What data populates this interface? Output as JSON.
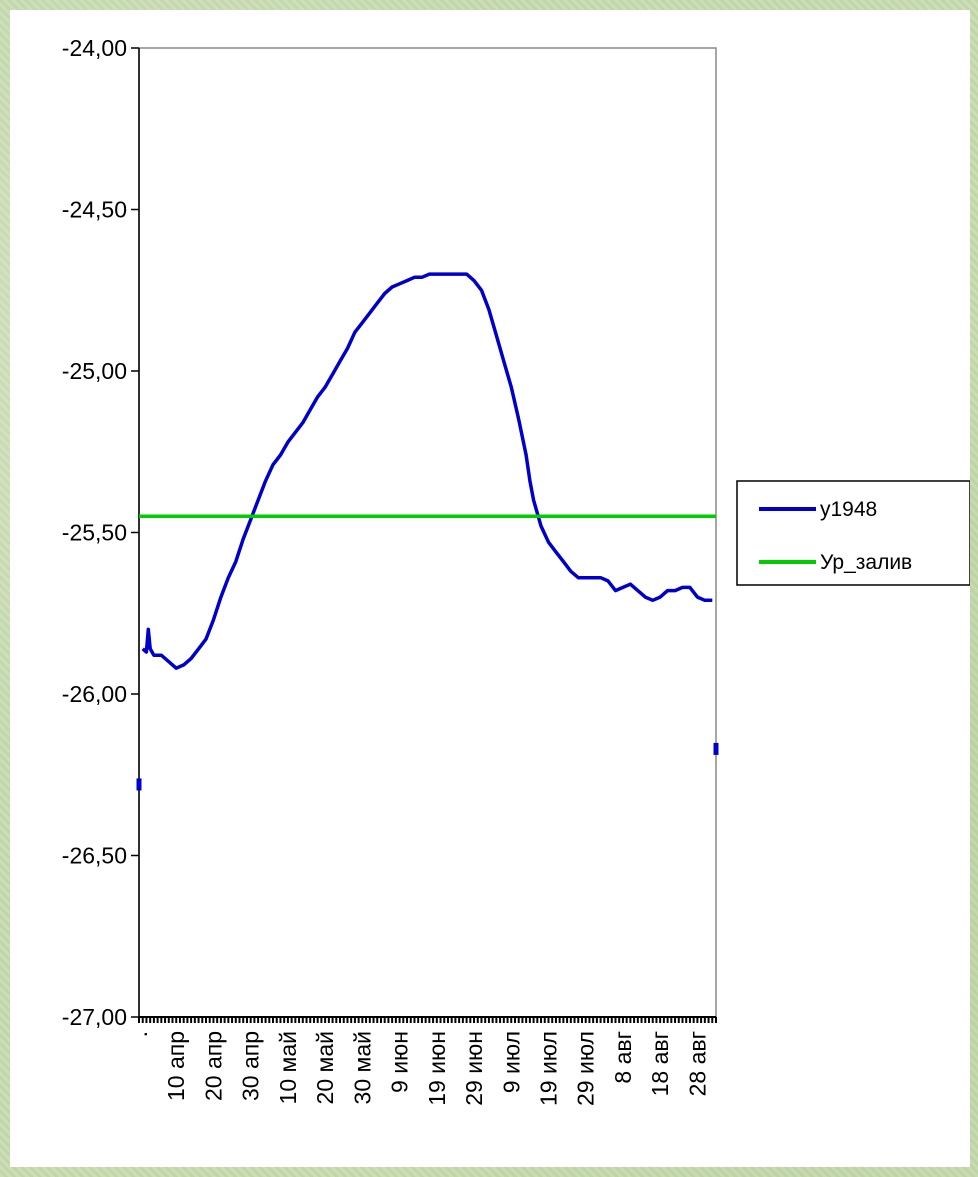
{
  "chart_data": {
    "type": "line",
    "title": "",
    "xlabel": "",
    "ylabel": "",
    "ylim": [
      -27.0,
      -24.0
    ],
    "yticks": [
      "-24,00",
      "-24,50",
      "-25,00",
      "-25,50",
      "-26,00",
      "-26,50",
      "-27,00"
    ],
    "ytick_values": [
      -24.0,
      -24.5,
      -25.0,
      -25.5,
      -26.0,
      -26.5,
      -27.0
    ],
    "xlim_day": [
      0,
      155
    ],
    "xticks": [
      {
        "label": ".",
        "day": 0
      },
      {
        "label": "10 апр",
        "day": 10
      },
      {
        "label": "20 апр",
        "day": 20
      },
      {
        "label": "30 апр",
        "day": 30
      },
      {
        "label": "10 май",
        "day": 40
      },
      {
        "label": "20 май",
        "day": 50
      },
      {
        "label": "30 май",
        "day": 60
      },
      {
        "label": "9 июн",
        "day": 70
      },
      {
        "label": "19 июн",
        "day": 80
      },
      {
        "label": "29 июн",
        "day": 90
      },
      {
        "label": "9 июл",
        "day": 100
      },
      {
        "label": "19 июл",
        "day": 110
      },
      {
        "label": "29 июл",
        "day": 120
      },
      {
        "label": "8 авг",
        "day": 130
      },
      {
        "label": "18 авг",
        "day": 140
      },
      {
        "label": "28 авг",
        "day": 150
      }
    ],
    "grid": false,
    "legend_position": "right",
    "series": [
      {
        "name": "y1948",
        "color": "#0000cc",
        "segments": [
          [
            [
              0,
              -26.28
            ]
          ],
          [
            [
              1,
              -25.86
            ],
            [
              2,
              -25.87
            ],
            [
              2.5,
              -25.8
            ],
            [
              3,
              -25.86
            ],
            [
              4,
              -25.88
            ],
            [
              6,
              -25.88
            ],
            [
              8,
              -25.9
            ],
            [
              10,
              -25.92
            ],
            [
              12,
              -25.91
            ],
            [
              14,
              -25.89
            ],
            [
              16,
              -25.86
            ],
            [
              18,
              -25.83
            ],
            [
              20,
              -25.77
            ],
            [
              22,
              -25.7
            ],
            [
              24,
              -25.64
            ],
            [
              26,
              -25.59
            ],
            [
              28,
              -25.52
            ],
            [
              30,
              -25.46
            ],
            [
              32,
              -25.4
            ],
            [
              34,
              -25.34
            ],
            [
              36,
              -25.29
            ],
            [
              38,
              -25.26
            ],
            [
              40,
              -25.22
            ],
            [
              42,
              -25.19
            ],
            [
              44,
              -25.16
            ],
            [
              46,
              -25.12
            ],
            [
              48,
              -25.08
            ],
            [
              50,
              -25.05
            ],
            [
              52,
              -25.01
            ],
            [
              54,
              -24.97
            ],
            [
              56,
              -24.93
            ],
            [
              58,
              -24.88
            ],
            [
              60,
              -24.85
            ],
            [
              62,
              -24.82
            ],
            [
              64,
              -24.79
            ],
            [
              66,
              -24.76
            ],
            [
              68,
              -24.74
            ],
            [
              70,
              -24.73
            ],
            [
              72,
              -24.72
            ],
            [
              74,
              -24.71
            ],
            [
              76,
              -24.71
            ],
            [
              78,
              -24.7
            ],
            [
              80,
              -24.7
            ],
            [
              82,
              -24.7
            ],
            [
              84,
              -24.7
            ],
            [
              86,
              -24.7
            ],
            [
              88,
              -24.7
            ],
            [
              90,
              -24.72
            ],
            [
              92,
              -24.75
            ],
            [
              94,
              -24.81
            ],
            [
              96,
              -24.89
            ],
            [
              98,
              -24.97
            ],
            [
              100,
              -25.05
            ],
            [
              102,
              -25.15
            ],
            [
              104,
              -25.26
            ],
            [
              105,
              -25.34
            ],
            [
              106,
              -25.4
            ],
            [
              108,
              -25.48
            ],
            [
              110,
              -25.53
            ],
            [
              112,
              -25.56
            ],
            [
              114,
              -25.59
            ],
            [
              116,
              -25.62
            ],
            [
              118,
              -25.64
            ],
            [
              120,
              -25.64
            ],
            [
              122,
              -25.64
            ],
            [
              124,
              -25.64
            ],
            [
              126,
              -25.65
            ],
            [
              128,
              -25.68
            ],
            [
              130,
              -25.67
            ],
            [
              132,
              -25.66
            ],
            [
              134,
              -25.68
            ],
            [
              136,
              -25.7
            ],
            [
              138,
              -25.71
            ],
            [
              140,
              -25.7
            ],
            [
              142,
              -25.68
            ],
            [
              144,
              -25.68
            ],
            [
              146,
              -25.67
            ],
            [
              148,
              -25.67
            ],
            [
              150,
              -25.7
            ],
            [
              152,
              -25.71
            ],
            [
              154,
              -25.71
            ]
          ],
          [
            [
              155,
              -26.17
            ]
          ]
        ]
      },
      {
        "name": "Ур_залив",
        "color": "#00cc00",
        "segments": [
          [
            [
              0,
              -25.45
            ],
            [
              155,
              -25.45
            ]
          ]
        ]
      }
    ]
  },
  "legend": {
    "items": [
      {
        "label": "y1948",
        "color": "#0000cc"
      },
      {
        "label": "Ур_залив",
        "color": "#00cc00"
      }
    ]
  }
}
